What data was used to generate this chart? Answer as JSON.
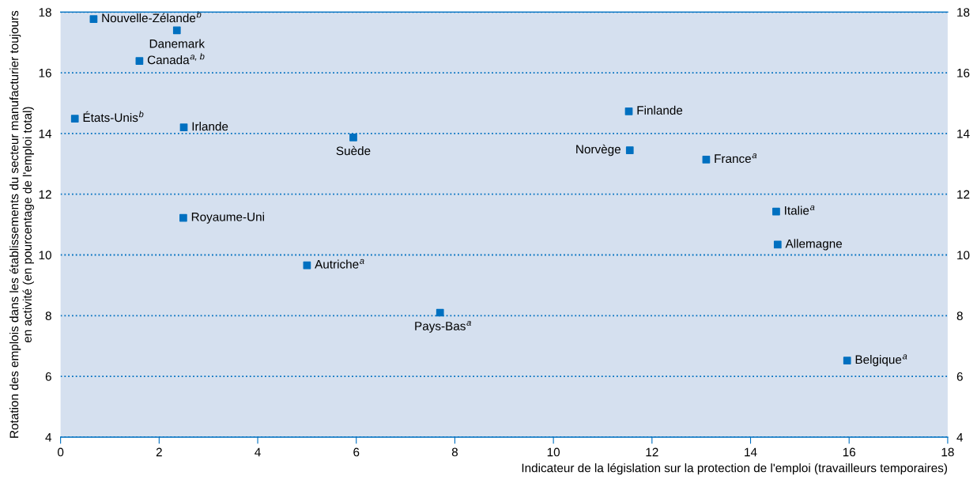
{
  "chart_data": {
    "type": "scatter",
    "xlabel": "Indicateur de la législation sur la protection de l'emploi (travailleurs temporaires)",
    "ylabel": "Rotation des emplois dans les établissements du secteur manufacturier toujours\nen activité (en pourcentage de l'emploi total)",
    "x": [
      0.67,
      2.36,
      1.6,
      0.29,
      2.5,
      5.94,
      2.49,
      5.0,
      7.7,
      11.53,
      11.55,
      13.1,
      14.52,
      14.55,
      15.96
    ],
    "series": [
      {
        "color": "#0070c0",
        "values": [
          17.77,
          17.4,
          16.39,
          14.49,
          14.2,
          13.87,
          11.22,
          9.66,
          8.1,
          14.73,
          13.45,
          13.14,
          11.43,
          10.34,
          6.52
        ]
      }
    ],
    "annotations": [
      {
        "text": "Nouvelle-Zélande$^{b}$",
        "x": 0.67,
        "y": 17.77
      },
      {
        "text": "Danemark",
        "x": 2.36,
        "y": 17.4
      },
      {
        "text": "Canada$^{a, b}$",
        "x": 1.6,
        "y": 16.39
      },
      {
        "text": "États-Unis$^{b}$",
        "x": 0.29,
        "y": 14.49
      },
      {
        "text": "Irlande",
        "x": 2.5,
        "y": 14.2
      },
      {
        "text": "Suède",
        "x": 5.94,
        "y": 13.87
      },
      {
        "text": "Royaume-Uni",
        "x": 2.49,
        "y": 11.22
      },
      {
        "text": "Autriche$^{a}$",
        "x": 5.0,
        "y": 9.66
      },
      {
        "text": "Pays-Bas$^{a}$",
        "x": 7.7,
        "y": 8.1
      },
      {
        "text": "Finlande",
        "x": 11.53,
        "y": 14.73
      },
      {
        "text": "Norvège",
        "x": 11.55,
        "y": 13.45
      },
      {
        "text": "France$^{a}$",
        "x": 13.1,
        "y": 13.14
      },
      {
        "text": "Italie$^{a}$",
        "x": 14.52,
        "y": 11.43
      },
      {
        "text": "Allemagne",
        "x": 14.55,
        "y": 10.34
      },
      {
        "text": "Belgique$^{a}$",
        "x": 15.96,
        "y": 6.52
      }
    ],
    "xlim": [
      0,
      18
    ],
    "xticks": [
      0,
      2,
      4,
      6,
      8,
      10,
      12,
      14,
      16,
      18
    ],
    "ylim": [
      4,
      18
    ],
    "yticks": [
      4,
      6,
      8,
      10,
      12,
      14,
      16,
      18
    ],
    "y2lim": [
      4,
      18
    ],
    "y2ticks": [
      4,
      6,
      8,
      10,
      12,
      14,
      16,
      18
    ],
    "grid": "y",
    "marker": "square",
    "legend": false
  }
}
